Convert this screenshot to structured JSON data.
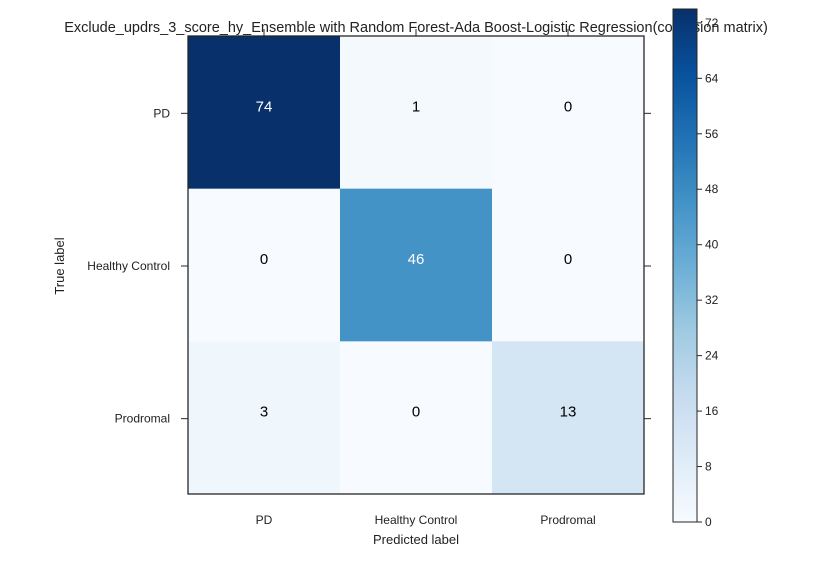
{
  "chart_data": {
    "type": "heatmap",
    "title": "Exclude_updrs_3_score_hy_Ensemble with Random Forest-Ada Boost-Logistic Regression(confusion matrix)",
    "xlabel": "Predicted label",
    "ylabel": "True label",
    "x_categories": [
      "PD",
      "Healthy Control",
      "Prodromal"
    ],
    "y_categories": [
      "PD",
      "Healthy Control",
      "Prodromal"
    ],
    "matrix": [
      [
        74,
        1,
        0
      ],
      [
        0,
        46,
        0
      ],
      [
        3,
        0,
        13
      ]
    ],
    "colormap": "Blues",
    "colorbar": {
      "min": 0,
      "max": 74,
      "ticks": [
        0,
        8,
        16,
        24,
        32,
        40,
        48,
        56,
        64,
        72
      ]
    }
  }
}
